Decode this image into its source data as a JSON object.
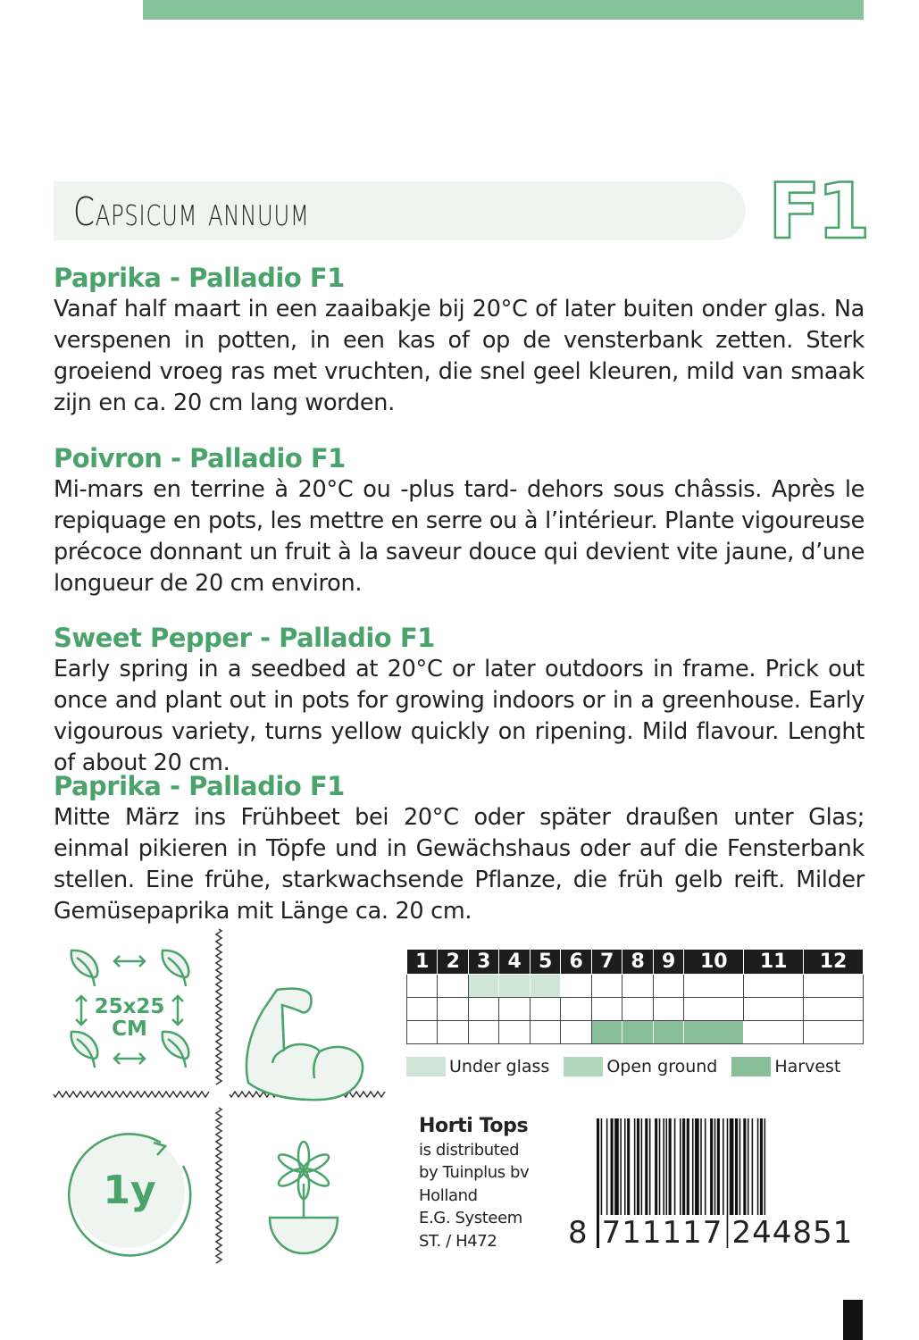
{
  "header": {
    "latin_name": "Capsicum annuum",
    "badge": "F1",
    "accent_color": "#4aa36a",
    "band_color": "#eef5f0",
    "topbar_color": "#86c29a"
  },
  "sections": [
    {
      "title": "Paprika - Palladio F1",
      "text": "Vanaf half maart in een zaaibakje bij 20°C of later buiten onder glas. Na verspenen in potten, in een kas of op de vensterbank zetten. Sterk groeiend vroeg ras met vruchten, die snel geel kleuren, mild van smaak zijn en ca. 20 cm lang worden."
    },
    {
      "title": "Poivron - Palladio F1",
      "text": "Mi-mars en terrine à 20°C ou -plus tard- dehors sous châssis. Après le repiquage en pots, les mettre en serre ou à l’intérieur. Plante vigoureuse précoce donnant un fruit à la saveur douce qui devient vite jaune, d’une longueur de 20 cm environ."
    },
    {
      "title": "Sweet Pepper - Palladio F1",
      "text": "Early spring in a seedbed at 20°C or later outdoors in frame. Prick out once and plant out in pots for growing indoors or in a greenhouse. Early vigourous variety, turns yellow quickly on ripening. Mild flavour. Lenght of about 20 cm."
    },
    {
      "title": "Paprika - Palladio F1",
      "text": "Mitte März ins Frühbeet bei 20°C oder später draußen unter Glas; einmal pikieren in Töpfe und in Gewächshaus oder auf die Fensterbank stellen. Eine frühe, starkwachsende Pflanze, die früh gelb reift. Milder Gemüsepaprika mit Länge ca. 20 cm."
    }
  ],
  "icons": {
    "spacing": {
      "line1": "25x25",
      "line2": "CM",
      "icon": "plant-spacing-icon"
    },
    "vigor": {
      "icon": "strong-arm-icon"
    },
    "cycle": {
      "label": "1y",
      "icon": "annual-cycle-icon"
    },
    "pot": {
      "icon": "flower-pot-icon"
    }
  },
  "calendar": {
    "months": [
      "1",
      "2",
      "3",
      "4",
      "5",
      "6",
      "7",
      "8",
      "9",
      "10",
      "11",
      "12"
    ],
    "rows": [
      {
        "type": "Under glass",
        "months": [
          3,
          4,
          5
        ],
        "color": "#cfe5d6"
      },
      {
        "type": "Open ground",
        "months": [],
        "color": "#b0d7bb"
      },
      {
        "type": "Harvest",
        "months": [
          7,
          8,
          9,
          10
        ],
        "color": "#88bf98"
      }
    ],
    "legend": [
      {
        "label": "Under glass",
        "color": "#cfe5d6"
      },
      {
        "label": "Open ground",
        "color": "#b0d7bb"
      },
      {
        "label": "Harvest",
        "color": "#88bf98"
      }
    ]
  },
  "distributor": {
    "brand": "Horti Tops",
    "lines": [
      "is distributed",
      "by Tuinplus bv",
      "Holland",
      "E.G. Systeem",
      "ST. / H472"
    ]
  },
  "barcode": {
    "digits": "8 711117 244851",
    "first": "8",
    "group1": "711117",
    "group2": "244851"
  }
}
